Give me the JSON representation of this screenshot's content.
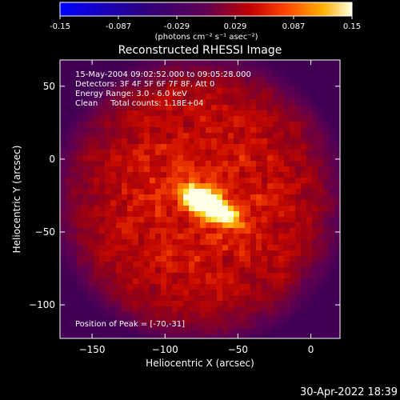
{
  "chart_data": {
    "type": "heatmap",
    "title": "Reconstructed RHESSI Image",
    "xlabel": "Heliocentric X (arcsec)",
    "ylabel": "Heliocentric Y (arcsec)",
    "xlim": [
      -172,
      20
    ],
    "ylim": [
      -123,
      68
    ],
    "x_ticks": [
      -150,
      -100,
      -50,
      0
    ],
    "y_ticks": [
      50,
      0,
      -50,
      -100
    ],
    "colorbar": {
      "range": [
        -0.15,
        0.15
      ],
      "ticks": [
        "-0.15",
        "-0.087",
        "-0.029",
        "0.029",
        "0.087",
        "0.15"
      ],
      "units": "(photons cm⁻² s⁻¹ asec⁻²)",
      "colormap": [
        "#0000ff",
        "#300060",
        "#600050",
        "#b00000",
        "#ff3000",
        "#ff9000",
        "#ffe000",
        "#ffffff"
      ]
    },
    "info_lines": [
      "15-May-2004 09:02:52.000 to 09:05:28.000",
      "Detectors: 3F 4F 5F 6F 7F 8F, Att 0",
      "Energy Range: 3.0 - 6.0 keV",
      "Clean     Total counts: 1.18E+04"
    ],
    "peak_label": "Position of Peak = [-70,-31]",
    "peak": {
      "x": -70,
      "y": -31,
      "value": 0.15
    },
    "source_cx": -70,
    "source_cy": -31
  },
  "footer": {
    "timestamp": "30-Apr-2022 18:39"
  }
}
